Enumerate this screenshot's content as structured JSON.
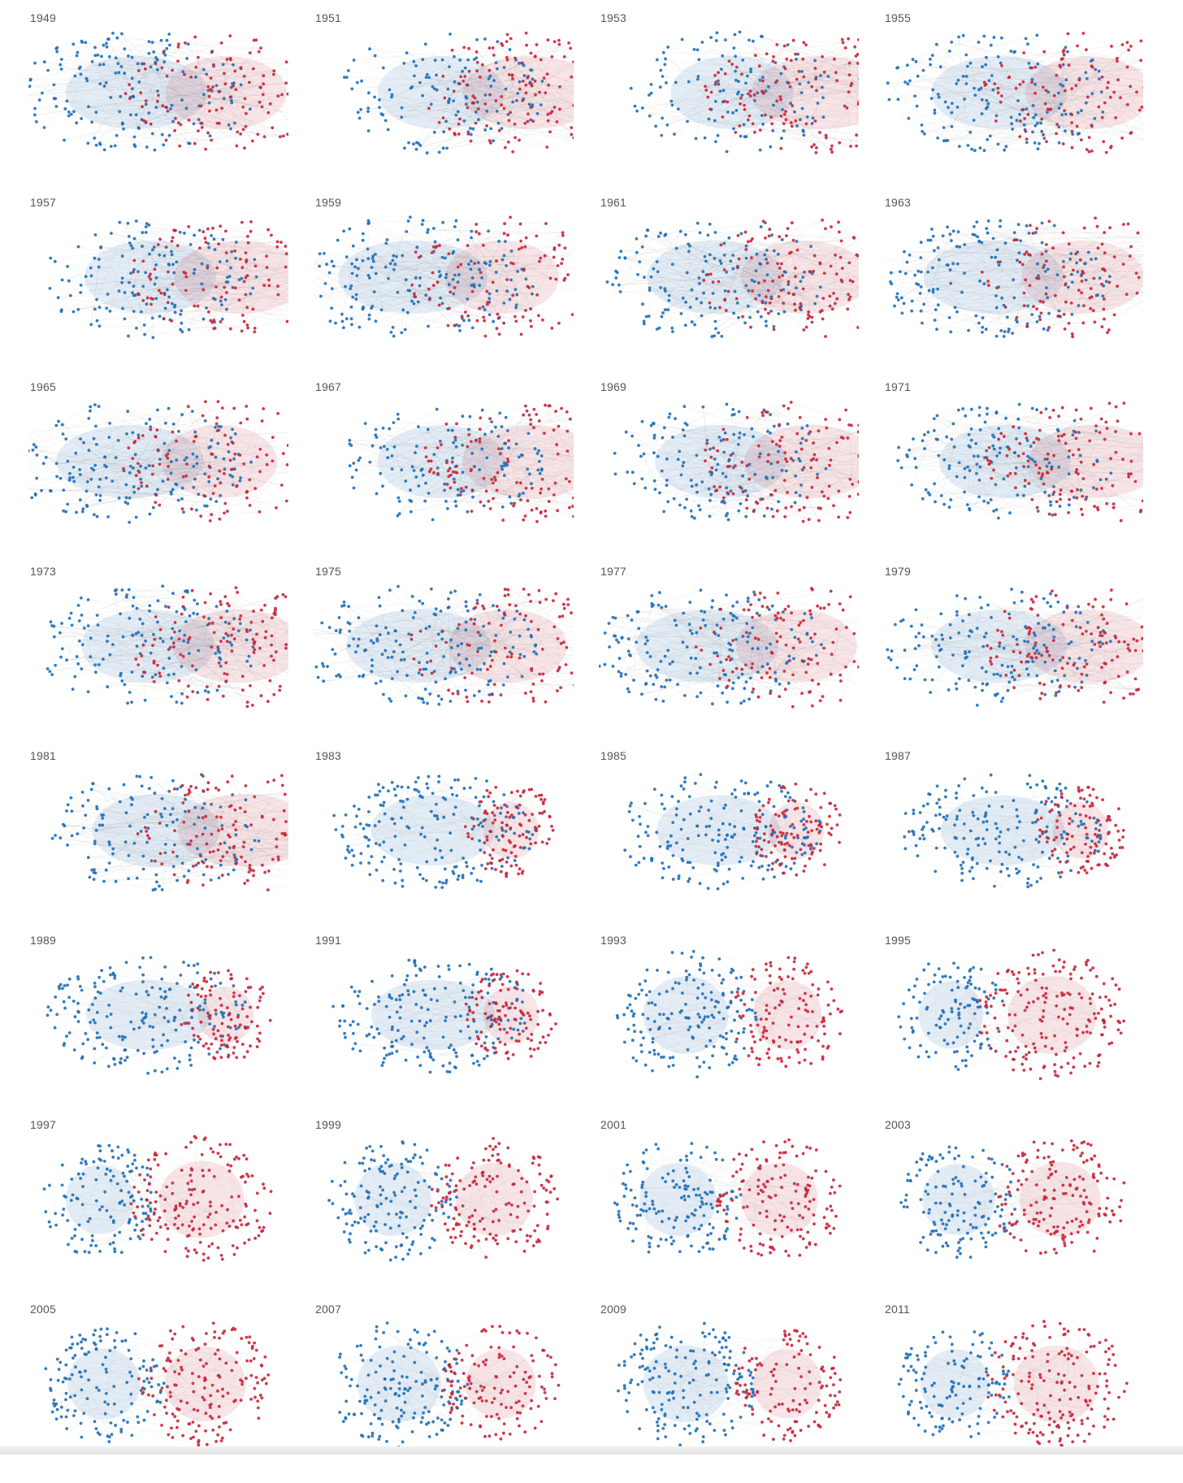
{
  "title": "",
  "colors": {
    "democrat": "#1f6fb6",
    "republican": "#c8263a",
    "edge": "#6a6a6a",
    "label": "#555555"
  },
  "panels": [
    {
      "year": "1949",
      "layout": "merged",
      "d": 0.62,
      "r": 0.38
    },
    {
      "year": "1951",
      "layout": "merged",
      "d": 0.45,
      "r": 0.55
    },
    {
      "year": "1953",
      "layout": "merged",
      "d": 0.4,
      "r": 0.6
    },
    {
      "year": "1955",
      "layout": "merged",
      "d": 0.55,
      "r": 0.45
    },
    {
      "year": "1957",
      "layout": "merged",
      "d": 0.5,
      "r": 0.5
    },
    {
      "year": "1959",
      "layout": "merged",
      "d": 0.7,
      "r": 0.3
    },
    {
      "year": "1961",
      "layout": "merged",
      "d": 0.55,
      "r": 0.45
    },
    {
      "year": "1963",
      "layout": "merged",
      "d": 0.6,
      "r": 0.4
    },
    {
      "year": "1965",
      "layout": "merged",
      "d": 0.68,
      "r": 0.32
    },
    {
      "year": "1967",
      "layout": "merged",
      "d": 0.45,
      "r": 0.55
    },
    {
      "year": "1969",
      "layout": "merged",
      "d": 0.5,
      "r": 0.5
    },
    {
      "year": "1971",
      "layout": "merged",
      "d": 0.5,
      "r": 0.5
    },
    {
      "year": "1973",
      "layout": "merged",
      "d": 0.52,
      "r": 0.48
    },
    {
      "year": "1975",
      "layout": "merged",
      "d": 0.65,
      "r": 0.35
    },
    {
      "year": "1977",
      "layout": "merged",
      "d": 0.62,
      "r": 0.38
    },
    {
      "year": "1979",
      "layout": "merged",
      "d": 0.55,
      "r": 0.45
    },
    {
      "year": "1981",
      "layout": "merged",
      "d": 0.45,
      "r": 0.55
    },
    {
      "year": "1983",
      "layout": "split-near",
      "d": 0.7,
      "r": 0.3
    },
    {
      "year": "1985",
      "layout": "split-near",
      "d": 0.7,
      "r": 0.3
    },
    {
      "year": "1987",
      "layout": "split-near",
      "d": 0.7,
      "r": 0.3
    },
    {
      "year": "1989",
      "layout": "split-near",
      "d": 0.7,
      "r": 0.3
    },
    {
      "year": "1991",
      "layout": "split-near",
      "d": 0.7,
      "r": 0.3
    },
    {
      "year": "1993",
      "layout": "split",
      "d": 0.6,
      "r": 0.4
    },
    {
      "year": "1995",
      "layout": "split",
      "d": 0.35,
      "r": 0.65
    },
    {
      "year": "1997",
      "layout": "split",
      "d": 0.4,
      "r": 0.6
    },
    {
      "year": "1999",
      "layout": "split",
      "d": 0.5,
      "r": 0.5
    },
    {
      "year": "2001",
      "layout": "split",
      "d": 0.5,
      "r": 0.5
    },
    {
      "year": "2003",
      "layout": "split",
      "d": 0.45,
      "r": 0.55
    },
    {
      "year": "2005",
      "layout": "split",
      "d": 0.45,
      "r": 0.55
    },
    {
      "year": "2007",
      "layout": "split",
      "d": 0.58,
      "r": 0.42
    },
    {
      "year": "2009",
      "layout": "split",
      "d": 0.6,
      "r": 0.4
    },
    {
      "year": "2011",
      "layout": "split",
      "d": 0.4,
      "r": 0.6
    }
  ]
}
